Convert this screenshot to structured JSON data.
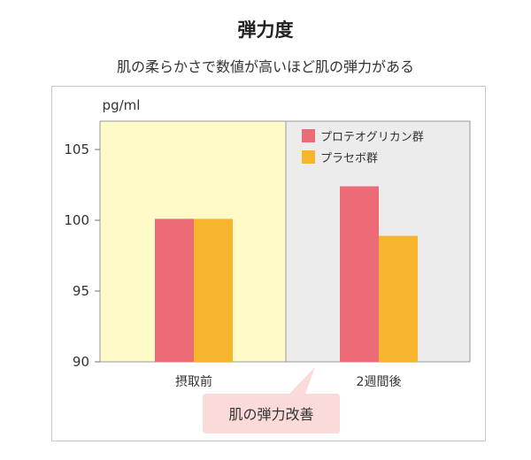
{
  "header": {
    "title": "弾力度",
    "subtitle": "肌の柔らかさで数値が高いほど肌の弾力がある"
  },
  "colors": {
    "series_protein": "#ec6b76",
    "series_placebo": "#f7b52e",
    "panel_before_bg": "#fffac8",
    "panel_after_bg": "#ececec",
    "callout_bg": "#fbdada"
  },
  "annotation": {
    "callout": "肌の弾力改善"
  },
  "chart_data": {
    "type": "bar",
    "ylabel": "pg/ml",
    "ylim": [
      90,
      107
    ],
    "yticks": [
      90,
      95,
      100,
      105
    ],
    "categories": [
      "摂取前",
      "2週間後"
    ],
    "series": [
      {
        "name": "プロテオグリカン群",
        "values": [
          100.1,
          102.4
        ]
      },
      {
        "name": "プラセボ群",
        "values": [
          100.1,
          98.9
        ]
      }
    ],
    "legend_position": "top-right",
    "grid": false
  }
}
